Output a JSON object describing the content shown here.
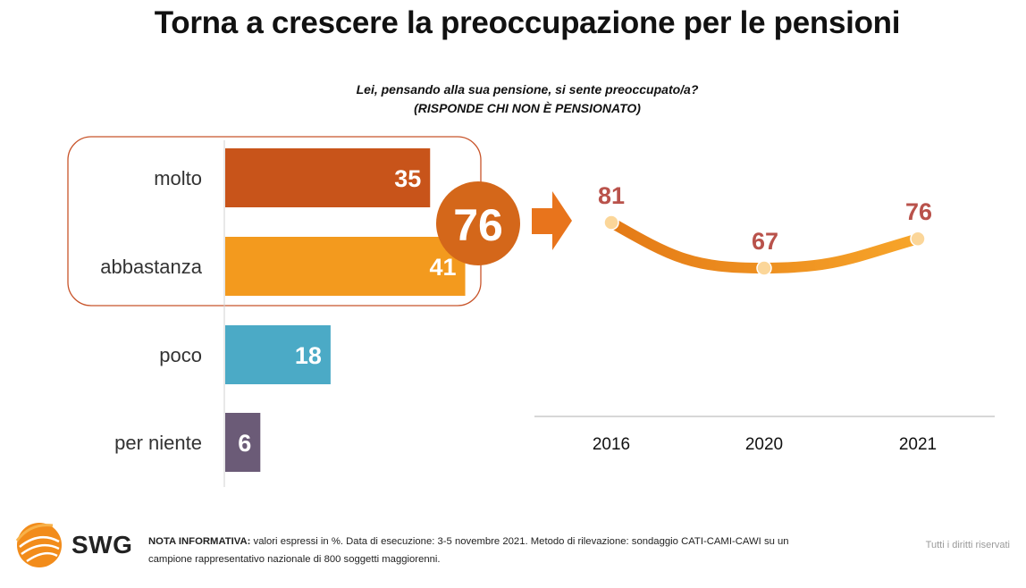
{
  "title": "Torna a crescere la preoccupazione per le pensioni",
  "question": "Lei, pensando alla sua pensione, si sente preoccupato/a?",
  "question_note": "(RISPONDE CHI NON È PENSIONATO)",
  "total": {
    "value": "76",
    "color": "#D4671A"
  },
  "colors": {
    "accent": "#F39A1E",
    "trend_label": "#B9524B",
    "frame": "#C8542A"
  },
  "chart_data": [
    {
      "type": "bar",
      "orientation": "horizontal",
      "categories": [
        "molto",
        "abbastanza",
        "poco",
        "per niente"
      ],
      "values": [
        35,
        41,
        18,
        6
      ],
      "colors": [
        "#C8541A",
        "#F39A1E",
        "#4BAAC6",
        "#6B5B77"
      ],
      "xlim": [
        0,
        45
      ],
      "unit": "%"
    },
    {
      "type": "line",
      "categories": [
        "2016",
        "2020",
        "2021"
      ],
      "values": [
        81,
        67,
        76
      ],
      "ylim": [
        55,
        95
      ],
      "color": "#F39A1E"
    }
  ],
  "footer": {
    "logo_text": "SWG",
    "note_label": "NOTA INFORMATIVA:",
    "note_line1": " valori espressi in %. Data di esecuzione: 3-5 novembre 2021. Metodo di rilevazione: sondaggio CATI-CAMI-CAWI su un",
    "note_line2": "campione rappresentativo nazionale di 800 soggetti maggiorenni.",
    "rights": "Tutti i diritti riservati"
  }
}
